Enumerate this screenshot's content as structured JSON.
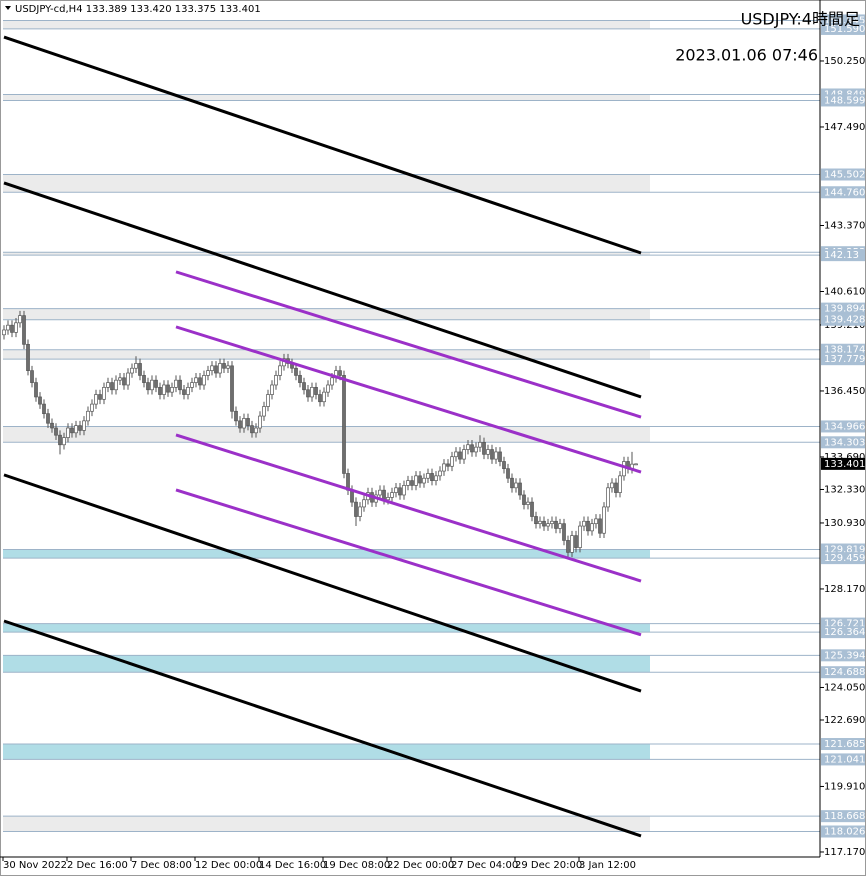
{
  "chart_data": {
    "type": "candlestick",
    "header": "USDJPY-cd,H4  133.389 133.420 133.375 133.401",
    "title": "USDJPY:4時間足",
    "subtitle": "2023.01.06 07:46",
    "up_color": "#ffffff",
    "down_color": "#6e6e6e",
    "outline_color": "#555555",
    "ylim": [
      116.96,
      152.8
    ],
    "yticks": [
      {
        "value": 150.25,
        "label": "150.250"
      },
      {
        "value": 147.49,
        "label": "147.490"
      },
      {
        "value": 143.37,
        "label": "143.370"
      },
      {
        "value": 140.61,
        "label": "140.610"
      },
      {
        "value": 139.21,
        "label": "139.210"
      },
      {
        "value": 136.45,
        "label": "136.450"
      },
      {
        "value": 133.69,
        "label": "133.690"
      },
      {
        "value": 132.33,
        "label": "132.330"
      },
      {
        "value": 130.93,
        "label": "130.930"
      },
      {
        "value": 128.17,
        "label": "128.170"
      },
      {
        "value": 124.05,
        "label": "124.050"
      },
      {
        "value": 122.69,
        "label": "122.690"
      },
      {
        "value": 119.91,
        "label": "119.910"
      },
      {
        "value": 117.17,
        "label": "117.170"
      }
    ],
    "xticks": [
      {
        "value": 0,
        "label": "30 Nov 2022"
      },
      {
        "value": 16,
        "label": "2 Dec 16:00"
      },
      {
        "value": 32,
        "label": "7 Dec 08:00"
      },
      {
        "value": 48,
        "label": "12 Dec 00:00"
      },
      {
        "value": 64,
        "label": "14 Dec 16:00"
      },
      {
        "value": 80,
        "label": "19 Dec 08:00"
      },
      {
        "value": 96,
        "label": "22 Dec 00:00"
      },
      {
        "value": 112,
        "label": "27 Dec 04:00"
      },
      {
        "value": 128,
        "label": "29 Dec 20:00"
      },
      {
        "value": 144,
        "label": "3 Jan 12:00"
      }
    ],
    "zones": [
      {
        "top": 151.945,
        "bottom": {
          "value": 151.59,
          "label": "151.590"
        },
        "fill": "#ebebeb"
      },
      {
        "top": 148.849,
        "bottom": 148.599,
        "fill": "#ebebeb"
      },
      {
        "top": 145.502,
        "bottom": {
          "value": 144.76,
          "label": "144.760"
        },
        "fill": "#ebebeb"
      },
      {
        "top": 142.253,
        "bottom": 142.13,
        "fill": "#ebebeb"
      },
      {
        "top": 139.894,
        "bottom": 139.428,
        "fill": "#ebebeb"
      },
      {
        "top": 138.174,
        "bottom": 137.779,
        "fill": "#ebebeb"
      },
      {
        "top": 134.966,
        "bottom": 134.303,
        "fill": "#ebebeb"
      },
      {
        "top": 129.819,
        "bottom": 129.459,
        "fill": "#b0dde6"
      },
      {
        "top": 126.721,
        "bottom": 126.364,
        "fill": "#b0dde6"
      },
      {
        "top": 125.394,
        "bottom": 124.688,
        "fill": "#b0dde6"
      },
      {
        "top": 121.685,
        "bottom": 121.041,
        "fill": "#b0dde6"
      },
      {
        "top": 118.668,
        "bottom": 118.026,
        "fill": "#ebebeb"
      }
    ],
    "trendlines": [
      {
        "color": "#000000",
        "points": [
          [
            0,
            151.25
          ],
          [
            159.25,
            142.22
          ]
        ]
      },
      {
        "color": "#000000",
        "points": [
          [
            0,
            145.15
          ],
          [
            159.25,
            136.2
          ]
        ]
      },
      {
        "color": "#000000",
        "points": [
          [
            0,
            132.94
          ],
          [
            159.25,
            123.9
          ]
        ]
      },
      {
        "color": "#000000",
        "points": [
          [
            0,
            126.83
          ],
          [
            159.25,
            117.84
          ]
        ]
      },
      {
        "color": "#9b30c8",
        "points": [
          [
            43,
            141.43
          ],
          [
            159.25,
            135.36
          ]
        ]
      },
      {
        "color": "#9b30c8",
        "points": [
          [
            43,
            139.13
          ],
          [
            159.25,
            133.06
          ]
        ]
      },
      {
        "color": "#9b30c8",
        "points": [
          [
            43,
            134.61
          ],
          [
            159.25,
            128.5
          ]
        ]
      },
      {
        "color": "#9b30c8",
        "points": [
          [
            43,
            132.31
          ],
          [
            159.25,
            126.25
          ]
        ]
      }
    ],
    "candles": [
      [
        138.8,
        139.2,
        138.6,
        139.0
      ],
      [
        139.0,
        139.4,
        138.8,
        139.2
      ],
      [
        139.2,
        139.4,
        138.7,
        138.9
      ],
      [
        138.9,
        139.5,
        138.7,
        139.3
      ],
      [
        139.3,
        139.8,
        139.1,
        139.6
      ],
      [
        139.6,
        139.8,
        138.2,
        138.4
      ],
      [
        138.4,
        138.6,
        137.1,
        137.3
      ],
      [
        137.3,
        137.5,
        136.6,
        136.8
      ],
      [
        136.8,
        137.0,
        136.0,
        136.2
      ],
      [
        136.2,
        136.4,
        135.7,
        135.9
      ],
      [
        135.9,
        136.1,
        135.3,
        135.5
      ],
      [
        135.5,
        135.7,
        134.9,
        135.1
      ],
      [
        135.1,
        135.3,
        134.7,
        134.9
      ],
      [
        134.9,
        135.1,
        134.4,
        134.6
      ],
      [
        134.6,
        134.8,
        133.8,
        134.2
      ],
      [
        134.2,
        134.7,
        134.0,
        134.5
      ],
      [
        134.5,
        135.1,
        134.3,
        134.9
      ],
      [
        134.9,
        135.1,
        134.5,
        134.7
      ],
      [
        134.7,
        135.2,
        134.5,
        135.0
      ],
      [
        135.0,
        135.2,
        134.6,
        134.8
      ],
      [
        134.8,
        135.4,
        134.6,
        135.2
      ],
      [
        135.2,
        135.8,
        135.0,
        135.6
      ],
      [
        135.6,
        136.1,
        135.4,
        135.9
      ],
      [
        135.9,
        136.5,
        135.7,
        136.3
      ],
      [
        136.3,
        136.5,
        135.9,
        136.1
      ],
      [
        136.1,
        136.8,
        135.9,
        136.6
      ],
      [
        136.6,
        137.0,
        136.4,
        136.8
      ],
      [
        136.8,
        137.0,
        136.3,
        136.5
      ],
      [
        136.5,
        137.1,
        136.3,
        136.9
      ],
      [
        136.9,
        137.2,
        136.7,
        137.0
      ],
      [
        137.0,
        137.2,
        136.5,
        136.7
      ],
      [
        136.7,
        137.4,
        136.5,
        137.2
      ],
      [
        137.2,
        137.6,
        137.0,
        137.4
      ],
      [
        137.4,
        137.9,
        137.2,
        137.6
      ],
      [
        137.6,
        137.8,
        136.9,
        137.1
      ],
      [
        137.1,
        137.3,
        136.6,
        136.8
      ],
      [
        136.8,
        137.0,
        136.3,
        136.5
      ],
      [
        136.5,
        137.1,
        136.3,
        136.9
      ],
      [
        136.9,
        137.1,
        136.4,
        136.6
      ],
      [
        136.6,
        136.8,
        136.1,
        136.3
      ],
      [
        136.3,
        136.9,
        136.1,
        136.7
      ],
      [
        136.7,
        136.9,
        136.2,
        136.4
      ],
      [
        136.4,
        136.8,
        136.2,
        136.6
      ],
      [
        136.6,
        137.1,
        136.4,
        136.9
      ],
      [
        136.9,
        137.1,
        136.3,
        136.5
      ],
      [
        136.5,
        136.7,
        136.1,
        136.3
      ],
      [
        136.3,
        136.8,
        136.1,
        136.6
      ],
      [
        136.6,
        137.0,
        136.4,
        136.8
      ],
      [
        136.8,
        137.2,
        136.6,
        137.0
      ],
      [
        137.0,
        137.2,
        136.5,
        136.7
      ],
      [
        136.7,
        137.3,
        136.5,
        137.1
      ],
      [
        137.1,
        137.5,
        136.9,
        137.3
      ],
      [
        137.3,
        137.7,
        137.1,
        137.5
      ],
      [
        137.5,
        137.7,
        137.0,
        137.2
      ],
      [
        137.2,
        137.8,
        137.0,
        137.6
      ],
      [
        137.6,
        137.8,
        137.2,
        137.4
      ],
      [
        137.4,
        137.7,
        137.2,
        137.5
      ],
      [
        137.5,
        137.7,
        135.3,
        135.6
      ],
      [
        135.6,
        135.8,
        135.0,
        135.2
      ],
      [
        135.2,
        135.4,
        134.7,
        134.9
      ],
      [
        134.9,
        135.5,
        134.7,
        135.3
      ],
      [
        135.3,
        135.5,
        134.8,
        135.0
      ],
      [
        135.0,
        135.2,
        134.5,
        134.7
      ],
      [
        134.7,
        135.1,
        134.5,
        134.9
      ],
      [
        134.9,
        135.6,
        134.7,
        135.4
      ],
      [
        135.4,
        136.0,
        135.2,
        135.8
      ],
      [
        135.8,
        136.5,
        135.6,
        136.3
      ],
      [
        136.3,
        136.9,
        136.1,
        136.7
      ],
      [
        136.7,
        137.3,
        136.5,
        137.1
      ],
      [
        137.1,
        137.7,
        136.9,
        137.5
      ],
      [
        137.5,
        138.0,
        137.3,
        137.8
      ],
      [
        137.8,
        138.0,
        137.4,
        137.6
      ],
      [
        137.6,
        137.8,
        137.2,
        137.4
      ],
      [
        137.4,
        137.6,
        136.9,
        137.1
      ],
      [
        137.1,
        137.3,
        136.6,
        136.8
      ],
      [
        136.8,
        137.0,
        136.3,
        136.5
      ],
      [
        136.5,
        136.7,
        136.0,
        136.2
      ],
      [
        136.2,
        136.8,
        136.0,
        136.6
      ],
      [
        136.6,
        136.8,
        136.1,
        136.3
      ],
      [
        136.3,
        136.5,
        135.8,
        136.0
      ],
      [
        136.0,
        136.6,
        135.8,
        136.4
      ],
      [
        136.4,
        136.9,
        136.2,
        136.7
      ],
      [
        136.7,
        137.2,
        136.5,
        137.0
      ],
      [
        137.0,
        137.5,
        136.8,
        137.3
      ],
      [
        137.3,
        137.5,
        136.9,
        137.1
      ],
      [
        137.1,
        137.3,
        132.8,
        133.0
      ],
      [
        133.0,
        133.2,
        132.1,
        132.3
      ],
      [
        132.3,
        132.5,
        131.6,
        131.8
      ],
      [
        131.8,
        132.0,
        130.8,
        131.2
      ],
      [
        131.2,
        131.8,
        131.0,
        131.6
      ],
      [
        131.6,
        132.1,
        131.4,
        131.9
      ],
      [
        131.9,
        132.4,
        131.7,
        132.2
      ],
      [
        132.2,
        132.4,
        131.6,
        131.8
      ],
      [
        131.8,
        132.3,
        131.6,
        132.1
      ],
      [
        132.1,
        132.5,
        131.9,
        132.3
      ],
      [
        132.3,
        132.5,
        131.7,
        131.9
      ],
      [
        131.9,
        132.2,
        131.7,
        132.0
      ],
      [
        132.0,
        132.4,
        131.8,
        132.2
      ],
      [
        132.2,
        132.6,
        132.0,
        132.4
      ],
      [
        132.4,
        132.6,
        131.9,
        132.1
      ],
      [
        132.1,
        132.7,
        131.9,
        132.5
      ],
      [
        132.5,
        132.9,
        132.3,
        132.7
      ],
      [
        132.7,
        132.9,
        132.3,
        132.5
      ],
      [
        132.5,
        133.1,
        132.3,
        132.9
      ],
      [
        132.9,
        133.1,
        132.4,
        132.6
      ],
      [
        132.6,
        133.0,
        132.4,
        132.8
      ],
      [
        132.8,
        133.2,
        132.6,
        133.0
      ],
      [
        133.0,
        133.2,
        132.5,
        132.7
      ],
      [
        132.7,
        133.1,
        132.5,
        132.9
      ],
      [
        132.9,
        133.3,
        132.7,
        133.1
      ],
      [
        133.1,
        133.6,
        132.9,
        133.4
      ],
      [
        133.4,
        133.6,
        133.1,
        133.3
      ],
      [
        133.3,
        133.9,
        133.1,
        133.7
      ],
      [
        133.7,
        134.1,
        133.5,
        133.9
      ],
      [
        133.9,
        134.1,
        133.4,
        133.6
      ],
      [
        133.6,
        134.2,
        133.4,
        134.0
      ],
      [
        134.0,
        134.4,
        133.8,
        134.2
      ],
      [
        134.2,
        134.4,
        133.7,
        133.9
      ],
      [
        133.9,
        134.3,
        133.7,
        134.1
      ],
      [
        134.1,
        134.6,
        133.9,
        134.3
      ],
      [
        134.3,
        134.5,
        133.6,
        133.8
      ],
      [
        133.8,
        134.2,
        133.6,
        134.0
      ],
      [
        134.0,
        134.2,
        133.4,
        133.6
      ],
      [
        133.6,
        134.1,
        133.4,
        133.9
      ],
      [
        133.9,
        134.1,
        133.3,
        133.5
      ],
      [
        133.5,
        133.7,
        133.0,
        133.2
      ],
      [
        133.2,
        133.4,
        132.6,
        132.8
      ],
      [
        132.8,
        133.0,
        132.2,
        132.4
      ],
      [
        132.4,
        132.8,
        132.2,
        132.6
      ],
      [
        132.6,
        132.8,
        131.9,
        132.1
      ],
      [
        132.1,
        132.3,
        131.5,
        131.7
      ],
      [
        131.7,
        132.0,
        131.5,
        131.8
      ],
      [
        131.8,
        132.0,
        131.0,
        131.2
      ],
      [
        131.2,
        131.4,
        130.7,
        130.9
      ],
      [
        130.9,
        131.2,
        130.7,
        131.0
      ],
      [
        131.0,
        131.2,
        130.6,
        130.8
      ],
      [
        130.8,
        131.1,
        130.6,
        130.9
      ],
      [
        130.9,
        131.2,
        130.7,
        131.0
      ],
      [
        131.0,
        131.2,
        130.5,
        130.7
      ],
      [
        130.7,
        131.1,
        130.5,
        130.9
      ],
      [
        130.9,
        131.1,
        130.0,
        130.2
      ],
      [
        130.2,
        130.4,
        129.5,
        129.7
      ],
      [
        129.7,
        130.6,
        129.5,
        130.4
      ],
      [
        130.4,
        130.6,
        129.7,
        129.9
      ],
      [
        129.9,
        131.0,
        129.7,
        130.8
      ],
      [
        130.8,
        131.2,
        130.6,
        131.0
      ],
      [
        131.0,
        131.2,
        130.4,
        130.6
      ],
      [
        130.6,
        131.1,
        130.4,
        130.9
      ],
      [
        130.9,
        131.3,
        130.7,
        131.1
      ],
      [
        131.1,
        131.3,
        130.3,
        130.5
      ],
      [
        130.5,
        131.8,
        130.3,
        131.6
      ],
      [
        131.6,
        132.6,
        131.4,
        132.4
      ],
      [
        132.4,
        132.8,
        132.2,
        132.6
      ],
      [
        132.6,
        132.8,
        132.0,
        132.2
      ],
      [
        132.2,
        133.1,
        132.0,
        132.9
      ],
      [
        132.9,
        133.7,
        132.7,
        133.5
      ],
      [
        133.5,
        133.7,
        133.0,
        133.2
      ],
      [
        133.2,
        133.9,
        133.0,
        133.389
      ],
      [
        133.389,
        133.42,
        133.375,
        133.401
      ]
    ]
  }
}
